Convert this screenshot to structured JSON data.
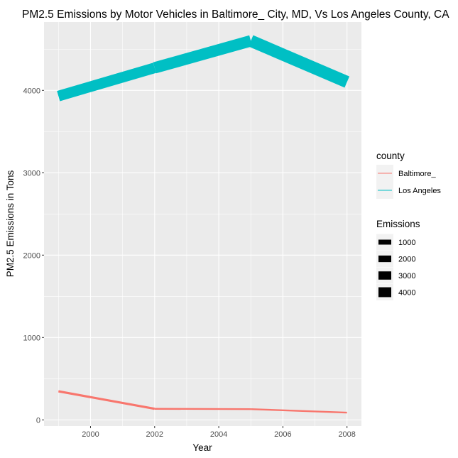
{
  "chart_data": {
    "type": "line",
    "title": "PM2.5 Emissions by Motor Vehicles in Baltimore_ City, MD, Vs Los Angeles County, CA",
    "xlabel": "Year",
    "ylabel": "PM2.5 Emissions in Tons",
    "x": [
      1999,
      2002,
      2005,
      2008
    ],
    "xlim": [
      1998.55,
      2008.45
    ],
    "ylim": [
      -75,
      4830
    ],
    "x_ticks": [
      2000,
      2002,
      2004,
      2006,
      2008
    ],
    "y_ticks": [
      0,
      1000,
      2000,
      3000,
      4000
    ],
    "grid": true,
    "series": [
      {
        "name": "Baltimore_",
        "color": "#F8766D",
        "values": [
          346.82,
          134.31,
          130.43,
          88.28
        ]
      },
      {
        "name": "Los Angeles",
        "color": "#00BFC4",
        "values": [
          3931.12,
          4273.71,
          4601.41,
          4101.32
        ]
      }
    ],
    "legend": {
      "placement": "right",
      "color_title": "county",
      "size_title": "Emissions",
      "size_values": [
        1000,
        2000,
        3000,
        4000
      ]
    }
  }
}
